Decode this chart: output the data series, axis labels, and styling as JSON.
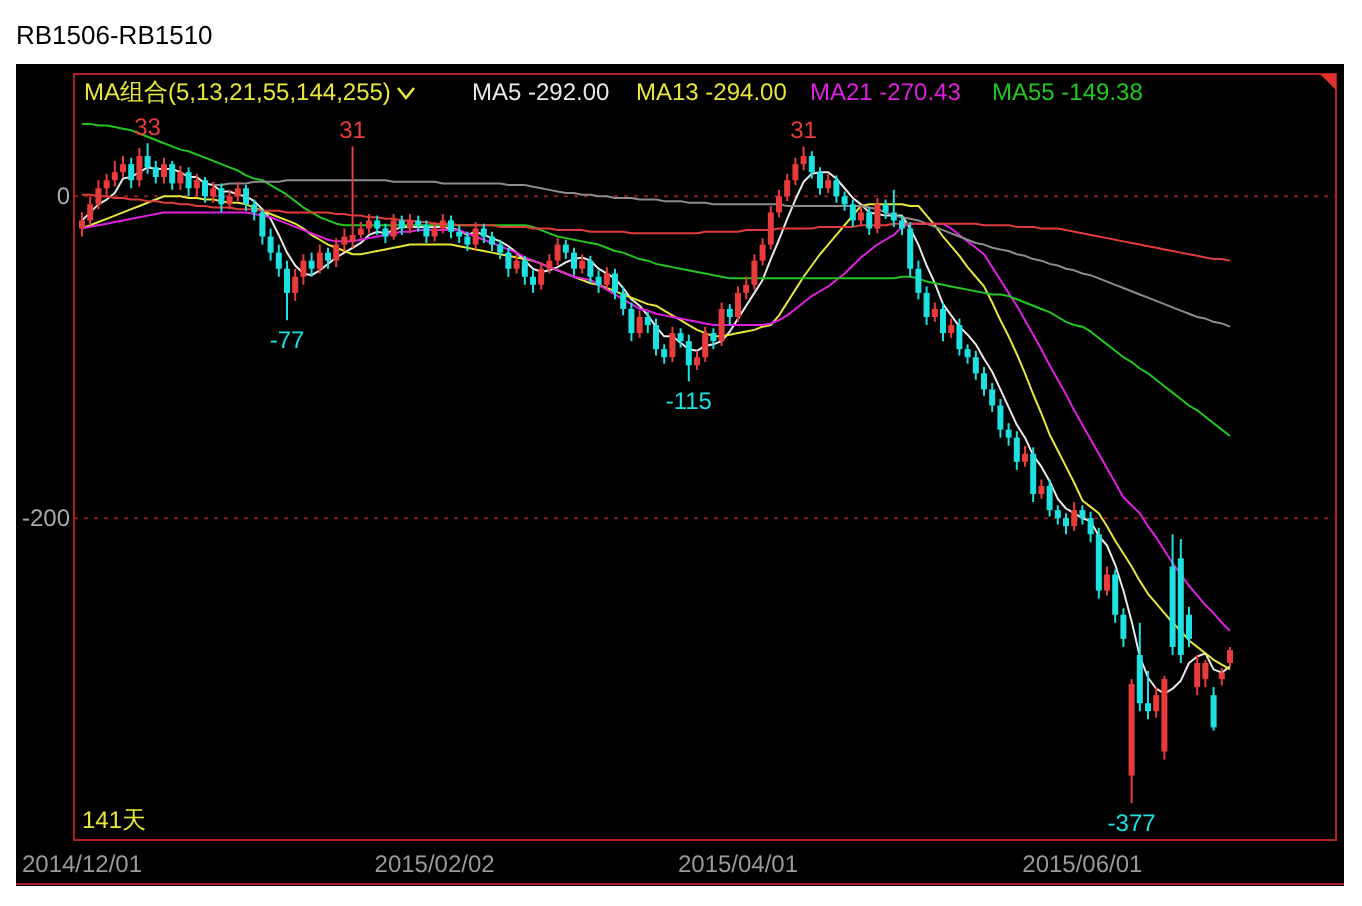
{
  "chart_data": {
    "type": "candlestick",
    "title": "RB1506-RB1510",
    "legend_title": "MA组合(5,13,21,55,144,255)",
    "legend": "top",
    "grid": "y",
    "ylim": [
      -400,
      76
    ],
    "yticks": [
      0,
      -200
    ],
    "categories": [
      "2014/12/01",
      null,
      null,
      null,
      null,
      null,
      null,
      null,
      null,
      null,
      null,
      null,
      null,
      null,
      null,
      null,
      null,
      null,
      null,
      null,
      null,
      null,
      null,
      null,
      null,
      null,
      null,
      null,
      null,
      null,
      null,
      null,
      null,
      null,
      null,
      null,
      null,
      null,
      null,
      null,
      null,
      null,
      null,
      "2015/02/02",
      null,
      null,
      null,
      null,
      null,
      null,
      null,
      null,
      null,
      null,
      null,
      null,
      null,
      null,
      null,
      null,
      null,
      null,
      null,
      null,
      null,
      null,
      null,
      null,
      null,
      null,
      null,
      null,
      null,
      null,
      null,
      null,
      null,
      null,
      null,
      null,
      "2015/04/01",
      null,
      null,
      null,
      null,
      null,
      null,
      null,
      null,
      null,
      null,
      null,
      null,
      null,
      null,
      null,
      null,
      null,
      null,
      null,
      null,
      null,
      null,
      null,
      null,
      null,
      null,
      null,
      null,
      null,
      null,
      null,
      null,
      null,
      null,
      null,
      null,
      null,
      null,
      null,
      null,
      null,
      "2015/06/01",
      null,
      null,
      null,
      null,
      null,
      null,
      null,
      null,
      null,
      null,
      null,
      null,
      null,
      null,
      null,
      null,
      null,
      null
    ],
    "ohlc": [
      [
        -20,
        -10,
        -25,
        -15
      ],
      [
        -15,
        0,
        -18,
        -5
      ],
      [
        -5,
        10,
        -8,
        5
      ],
      [
        5,
        14,
        0,
        10
      ],
      [
        10,
        22,
        6,
        15
      ],
      [
        15,
        25,
        12,
        20
      ],
      [
        20,
        24,
        5,
        10
      ],
      [
        10,
        30,
        6,
        25
      ],
      [
        25,
        33,
        14,
        18
      ],
      [
        18,
        22,
        8,
        12
      ],
      [
        12,
        24,
        8,
        20
      ],
      [
        20,
        22,
        4,
        8
      ],
      [
        8,
        19,
        4,
        15
      ],
      [
        15,
        18,
        0,
        5
      ],
      [
        5,
        14,
        0,
        10
      ],
      [
        10,
        12,
        -4,
        0
      ],
      [
        0,
        9,
        -4,
        5
      ],
      [
        5,
        8,
        -10,
        -5
      ],
      [
        -5,
        4,
        -8,
        0
      ],
      [
        0,
        9,
        -3,
        5
      ],
      [
        5,
        7,
        -9,
        -5
      ],
      [
        -5,
        -2,
        -15,
        -10
      ],
      [
        -10,
        -8,
        -30,
        -25
      ],
      [
        -25,
        -20,
        -40,
        -35
      ],
      [
        -35,
        -30,
        -50,
        -45
      ],
      [
        -45,
        -40,
        -77,
        -60
      ],
      [
        -60,
        -45,
        -65,
        -50
      ],
      [
        -50,
        -36,
        -55,
        -40
      ],
      [
        -40,
        -35,
        -50,
        -45
      ],
      [
        -45,
        -30,
        -48,
        -35
      ],
      [
        -35,
        -32,
        -45,
        -40
      ],
      [
        -40,
        -26,
        -44,
        -30
      ],
      [
        -30,
        -20,
        -34,
        -25
      ],
      [
        -28,
        31,
        -32,
        -24
      ],
      [
        -24,
        -16,
        -26,
        -20
      ],
      [
        -20,
        -11,
        -23,
        -15
      ],
      [
        -15,
        -12,
        -24,
        -20
      ],
      [
        -20,
        -17,
        -29,
        -25
      ],
      [
        -25,
        -11,
        -27,
        -15
      ],
      [
        -15,
        -12,
        -24,
        -20
      ],
      [
        -20,
        -11,
        -23,
        -15
      ],
      [
        -15,
        -12,
        -22,
        -18
      ],
      [
        -18,
        -15,
        -29,
        -25
      ],
      [
        -25,
        -16,
        -28,
        -20
      ],
      [
        -20,
        -11,
        -23,
        -15
      ],
      [
        -15,
        -12,
        -26,
        -22
      ],
      [
        -22,
        -18,
        -29,
        -25
      ],
      [
        -25,
        -22,
        -34,
        -30
      ],
      [
        -30,
        -16,
        -33,
        -20
      ],
      [
        -20,
        -17,
        -29,
        -25
      ],
      [
        -25,
        -22,
        -34,
        -30
      ],
      [
        -30,
        -27,
        -39,
        -35
      ],
      [
        -35,
        -32,
        -50,
        -45
      ],
      [
        -45,
        -36,
        -48,
        -40
      ],
      [
        -40,
        -37,
        -55,
        -50
      ],
      [
        -50,
        -46,
        -60,
        -55
      ],
      [
        -55,
        -41,
        -58,
        -45
      ],
      [
        -45,
        -36,
        -48,
        -40
      ],
      [
        -40,
        -26,
        -43,
        -30
      ],
      [
        -30,
        -27,
        -39,
        -35
      ],
      [
        -35,
        -32,
        -49,
        -45
      ],
      [
        -45,
        -36,
        -48,
        -40
      ],
      [
        -40,
        -37,
        -54,
        -50
      ],
      [
        -50,
        -46,
        -60,
        -55
      ],
      [
        -55,
        -44,
        -58,
        -48
      ],
      [
        -48,
        -45,
        -64,
        -60
      ],
      [
        -60,
        -56,
        -74,
        -70
      ],
      [
        -70,
        -66,
        -90,
        -85
      ],
      [
        -85,
        -71,
        -88,
        -75
      ],
      [
        -75,
        -72,
        -85,
        -80
      ],
      [
        -80,
        -76,
        -99,
        -95
      ],
      [
        -95,
        -92,
        -104,
        -100
      ],
      [
        -100,
        -81,
        -103,
        -85
      ],
      [
        -85,
        -82,
        -94,
        -90
      ],
      [
        -90,
        -86,
        -115,
        -105
      ],
      [
        -105,
        -96,
        -108,
        -100
      ],
      [
        -100,
        -81,
        -103,
        -85
      ],
      [
        -85,
        -82,
        -95,
        -90
      ],
      [
        -90,
        -66,
        -93,
        -70
      ],
      [
        -70,
        -67,
        -80,
        -75
      ],
      [
        -75,
        -56,
        -78,
        -60
      ],
      [
        -60,
        -50,
        -64,
        -55
      ],
      [
        -55,
        -36,
        -58,
        -40
      ],
      [
        -40,
        -26,
        -43,
        -30
      ],
      [
        -30,
        -6,
        -33,
        -10
      ],
      [
        -10,
        4,
        -13,
        0
      ],
      [
        0,
        14,
        -3,
        10
      ],
      [
        10,
        24,
        7,
        20
      ],
      [
        20,
        31,
        16,
        25
      ],
      [
        25,
        28,
        11,
        15
      ],
      [
        15,
        18,
        1,
        5
      ],
      [
        5,
        14,
        2,
        10
      ],
      [
        10,
        13,
        -4,
        0
      ],
      [
        0,
        3,
        -9,
        -5
      ],
      [
        -5,
        -2,
        -19,
        -15
      ],
      [
        -15,
        -6,
        -18,
        -10
      ],
      [
        -10,
        -7,
        -24,
        -20
      ],
      [
        -20,
        -1,
        -23,
        -5
      ],
      [
        -5,
        -2,
        -14,
        -10
      ],
      [
        -10,
        4,
        -19,
        -15
      ],
      [
        -15,
        -12,
        -24,
        -20
      ],
      [
        -20,
        -16,
        -50,
        -45
      ],
      [
        -45,
        -40,
        -64,
        -60
      ],
      [
        -60,
        -56,
        -80,
        -75
      ],
      [
        -75,
        -66,
        -78,
        -70
      ],
      [
        -70,
        -66,
        -90,
        -85
      ],
      [
        -85,
        -76,
        -88,
        -80
      ],
      [
        -80,
        -76,
        -99,
        -95
      ],
      [
        -95,
        -92,
        -104,
        -100
      ],
      [
        -100,
        -96,
        -114,
        -110
      ],
      [
        -110,
        -106,
        -124,
        -120
      ],
      [
        -120,
        -116,
        -134,
        -130
      ],
      [
        -130,
        -126,
        -150,
        -145
      ],
      [
        -145,
        -141,
        -155,
        -150
      ],
      [
        -150,
        -146,
        -170,
        -165
      ],
      [
        -165,
        -155,
        -168,
        -160
      ],
      [
        -160,
        -156,
        -190,
        -185
      ],
      [
        -185,
        -176,
        -188,
        -180
      ],
      [
        -180,
        -176,
        -199,
        -195
      ],
      [
        -195,
        -192,
        -204,
        -200
      ],
      [
        -200,
        -197,
        -210,
        -205
      ],
      [
        -205,
        -190,
        -208,
        -195
      ],
      [
        -195,
        -192,
        -204,
        -200
      ],
      [
        -200,
        -196,
        -215,
        -210
      ],
      [
        -210,
        -206,
        -250,
        -245
      ],
      [
        -245,
        -230,
        -248,
        -235
      ],
      [
        -235,
        -232,
        -265,
        -260
      ],
      [
        -260,
        -256,
        -280,
        -275
      ],
      [
        -360,
        -300,
        -377,
        -303
      ],
      [
        -285,
        -265,
        -320,
        -315
      ],
      [
        -315,
        -295,
        -325,
        -320
      ],
      [
        -320,
        -305,
        -324,
        -310
      ],
      [
        -345,
        -298,
        -350,
        -300
      ],
      [
        -230,
        -210,
        -285,
        -280
      ],
      [
        -225,
        -213,
        -290,
        -285
      ],
      [
        -260,
        -255,
        -280,
        -275
      ],
      [
        -305,
        -285,
        -310,
        -290
      ],
      [
        -300,
        -288,
        -305,
        -290
      ],
      [
        -310,
        -305,
        -332,
        -330
      ],
      [
        -300,
        -293,
        -304,
        -296
      ],
      [
        -290,
        -280,
        -292,
        -282
      ]
    ],
    "series": [
      {
        "name": "MA5 -292.00",
        "type": "line",
        "color": "#e8e8e8",
        "values": [
          -15,
          -10,
          -5,
          -2,
          2,
          11,
          12,
          15,
          18,
          17,
          17,
          17,
          15,
          12,
          12,
          8,
          7,
          3,
          3,
          1,
          0,
          -3,
          -8,
          -14,
          -24,
          -35,
          -43,
          -48,
          -49,
          -46,
          -42,
          -38,
          -35,
          -32,
          -29,
          -24,
          -22,
          -23,
          -21,
          -19,
          -19,
          -19,
          -19,
          -19,
          -19,
          -20,
          -21,
          -24,
          -22,
          -24,
          -26,
          -28,
          -31,
          -35,
          -40,
          -45,
          -47,
          -46,
          -44,
          -41,
          -39,
          -38,
          -40,
          -45,
          -48,
          -51,
          -57,
          -64,
          -68,
          -74,
          -81,
          -87,
          -87,
          -91,
          -95,
          -96,
          -93,
          -92,
          -90,
          -84,
          -76,
          -68,
          -60,
          -52,
          -39,
          -27,
          -14,
          -2,
          9,
          14,
          15,
          15,
          11,
          5,
          -1,
          -5,
          -10,
          -11,
          -12,
          -12,
          -12,
          -20,
          -30,
          -43,
          -54,
          -67,
          -74,
          -81,
          -86,
          -92,
          -101,
          -109,
          -120,
          -131,
          -142,
          -150,
          -161,
          -168,
          -177,
          -188,
          -194,
          -197,
          -200,
          -202,
          -211,
          -217,
          -229,
          -245,
          -264,
          -286,
          -299,
          -306,
          -309,
          -306,
          -301,
          -290,
          -286,
          -284,
          -294,
          -296,
          -292
        ]
      },
      {
        "name": "MA13 -294.00",
        "type": "line",
        "color": "#e6e63c",
        "values": [
          -20,
          -18,
          -16,
          -14,
          -12,
          -10,
          -8,
          -6,
          -4,
          -2,
          0,
          0,
          0,
          -1,
          -1,
          -2,
          -2,
          -3,
          -4,
          -4,
          -5,
          -7,
          -9,
          -11,
          -13,
          -15,
          -17,
          -20,
          -24,
          -27,
          -30,
          -32,
          -34,
          -36,
          -36,
          -35,
          -34,
          -33,
          -32,
          -31,
          -30,
          -30,
          -30,
          -30,
          -30,
          -30,
          -31,
          -32,
          -33,
          -34,
          -35,
          -36,
          -37,
          -38,
          -39,
          -40,
          -42,
          -44,
          -46,
          -48,
          -50,
          -52,
          -54,
          -55,
          -57,
          -59,
          -61,
          -63,
          -65,
          -67,
          -68,
          -71,
          -74,
          -77,
          -80,
          -83,
          -85,
          -87,
          -87,
          -86,
          -85,
          -84,
          -83,
          -81,
          -80,
          -74,
          -66,
          -58,
          -50,
          -43,
          -36,
          -30,
          -24,
          -18,
          -12,
          -6,
          -5,
          -5,
          -5,
          -5,
          -5,
          -6,
          -6,
          -12,
          -18,
          -25,
          -31,
          -37,
          -44,
          -50,
          -56,
          -66,
          -77,
          -87,
          -98,
          -110,
          -123,
          -135,
          -148,
          -158,
          -168,
          -178,
          -189,
          -193,
          -197,
          -205,
          -214,
          -222,
          -230,
          -239,
          -247,
          -253,
          -259,
          -265,
          -270,
          -276,
          -280,
          -284,
          -288,
          -291,
          -294
        ]
      },
      {
        "name": "MA21 -270.43",
        "type": "line",
        "color": "#e020e0",
        "values": [
          -20,
          -19,
          -18,
          -17,
          -16,
          -15,
          -14,
          -13,
          -12,
          -11,
          -10,
          -10,
          -10,
          -10,
          -10,
          -10,
          -10,
          -10,
          -10,
          -10,
          -10,
          -11,
          -12,
          -13,
          -15,
          -17,
          -19,
          -21,
          -23,
          -25,
          -27,
          -28,
          -28,
          -28,
          -27,
          -26,
          -25,
          -24,
          -23,
          -22,
          -22,
          -21,
          -21,
          -21,
          -21,
          -21,
          -21,
          -23,
          -25,
          -27,
          -29,
          -31,
          -33,
          -35,
          -38,
          -40,
          -42,
          -44,
          -46,
          -48,
          -50,
          -51,
          -52,
          -55,
          -58,
          -61,
          -64,
          -67,
          -70,
          -71,
          -73,
          -74,
          -75,
          -76,
          -77,
          -78,
          -79,
          -80,
          -80,
          -80,
          -80,
          -80,
          -80,
          -80,
          -79,
          -77,
          -74,
          -70,
          -66,
          -62,
          -59,
          -56,
          -52,
          -48,
          -43,
          -38,
          -34,
          -30,
          -27,
          -24,
          -19,
          -17,
          -17,
          -17,
          -17,
          -17,
          -20,
          -24,
          -28,
          -32,
          -36,
          -44,
          -52,
          -60,
          -68,
          -77,
          -86,
          -95,
          -105,
          -114,
          -123,
          -133,
          -142,
          -151,
          -160,
          -169,
          -178,
          -187,
          -192,
          -197,
          -205,
          -212,
          -220,
          -228,
          -235,
          -242,
          -248,
          -254,
          -259,
          -265,
          -270
        ]
      },
      {
        "name": "MA55 -149.38",
        "type": "line",
        "color": "#22c622",
        "values": [
          45,
          45,
          44,
          44,
          43,
          42,
          41,
          39,
          37,
          35,
          33,
          31,
          29,
          28,
          26,
          24,
          22,
          20,
          18,
          16,
          13,
          11,
          10,
          7,
          4,
          1,
          -3,
          -7,
          -10,
          -13,
          -15,
          -17,
          -18,
          -18,
          -18,
          -18,
          -18,
          -18,
          -18,
          -18,
          -18,
          -18,
          -18,
          -18,
          -18,
          -18,
          -18,
          -18,
          -18,
          -18,
          -18,
          -18,
          -18,
          -18,
          -18,
          -19,
          -21,
          -23,
          -25,
          -26,
          -27,
          -28,
          -29,
          -30,
          -32,
          -34,
          -35,
          -37,
          -39,
          -40,
          -42,
          -43,
          -44,
          -45,
          -46,
          -47,
          -48,
          -49,
          -50,
          -51,
          -51,
          -51,
          -51,
          -51,
          -51,
          -51,
          -51,
          -51,
          -51,
          -51,
          -51,
          -51,
          -51,
          -51,
          -51,
          -51,
          -51,
          -51,
          -51,
          -51,
          -50,
          -50,
          -51,
          -53,
          -54,
          -55,
          -56,
          -57,
          -58,
          -59,
          -60,
          -61,
          -61,
          -62,
          -64,
          -66,
          -68,
          -70,
          -72,
          -75,
          -78,
          -80,
          -81,
          -84,
          -88,
          -92,
          -96,
          -100,
          -103,
          -107,
          -110,
          -114,
          -118,
          -122,
          -126,
          -130,
          -133,
          -137,
          -141,
          -145,
          -149
        ]
      },
      {
        "type": "line",
        "color": "#8c8c8c",
        "values": [
          null,
          null,
          null,
          null,
          null,
          null,
          null,
          null,
          null,
          null,
          null,
          null,
          null,
          null,
          null,
          null,
          7,
          7,
          8,
          8,
          8,
          9,
          9,
          9,
          9,
          10,
          10,
          10,
          10,
          10,
          10,
          10,
          10,
          10,
          10,
          10,
          10,
          10,
          9,
          9,
          9,
          9,
          9,
          9,
          8,
          8,
          8,
          8,
          8,
          8,
          8,
          8,
          7,
          7,
          7,
          6,
          5,
          4,
          3,
          2,
          2,
          1,
          1,
          0,
          0,
          -1,
          -1,
          -1,
          -2,
          -2,
          -2,
          -3,
          -3,
          -3,
          -4,
          -4,
          -4,
          -5,
          -5,
          -5,
          -5,
          -5,
          -5,
          -5,
          -5,
          -5,
          -6,
          -6,
          -6,
          -6,
          -6,
          -6,
          -6,
          -6,
          -6,
          -6,
          -7,
          -8,
          -10,
          -12,
          -13,
          -14,
          -15,
          -17,
          -19,
          -21,
          -23,
          -25,
          -27,
          -29,
          -30,
          -32,
          -33,
          -34,
          -36,
          -37,
          -39,
          -40,
          -42,
          -43,
          -45,
          -46,
          -48,
          -49,
          -51,
          -53,
          -55,
          -57,
          -59,
          -61,
          -63,
          -65,
          -67,
          -69,
          -71,
          -73,
          -75,
          -76,
          -78,
          -79,
          -81
        ]
      },
      {
        "type": "line",
        "color": "#e03c3c",
        "values": [
          1,
          1,
          0,
          0,
          -1,
          -1,
          -2,
          -2,
          -3,
          -3,
          -4,
          -4,
          -5,
          -5,
          -6,
          -6,
          -7,
          -7,
          -7,
          -8,
          -8,
          -8,
          -9,
          -9,
          -9,
          -10,
          -10,
          -10,
          -10,
          -10,
          -10,
          -11,
          -11,
          -12,
          -12,
          -13,
          -13,
          -14,
          -14,
          -15,
          -15,
          -16,
          -16,
          -17,
          -17,
          -17,
          -18,
          -18,
          -18,
          -18,
          -18,
          -19,
          -19,
          -19,
          -19,
          -20,
          -20,
          -20,
          -21,
          -21,
          -21,
          -21,
          -22,
          -22,
          -22,
          -22,
          -22,
          -23,
          -23,
          -23,
          -23,
          -23,
          -23,
          -23,
          -23,
          -23,
          -22,
          -22,
          -22,
          -22,
          -22,
          -21,
          -21,
          -21,
          -21,
          -20,
          -20,
          -20,
          -20,
          -20,
          -19,
          -19,
          -19,
          -19,
          -19,
          -18,
          -18,
          -18,
          -18,
          -17,
          -17,
          -17,
          -17,
          -17,
          -17,
          -17,
          -17,
          -17,
          -17,
          -17,
          -18,
          -18,
          -18,
          -18,
          -19,
          -19,
          -19,
          -20,
          -20,
          -20,
          -21,
          -22,
          -23,
          -24,
          -25,
          -26,
          -27,
          -28,
          -29,
          -30,
          -31,
          -32,
          -33,
          -34,
          -35,
          -36,
          -37,
          -38,
          -39,
          -39,
          -40
        ]
      }
    ],
    "annotations": [
      {
        "text": "33",
        "y": 33
      },
      {
        "text": "31",
        "y": 31
      },
      {
        "text": "-77",
        "y": -77
      },
      {
        "text": "-115",
        "y": -115
      },
      {
        "text": "31",
        "y": 31
      },
      {
        "text": "-377",
        "y": -377
      },
      "141天"
    ]
  }
}
